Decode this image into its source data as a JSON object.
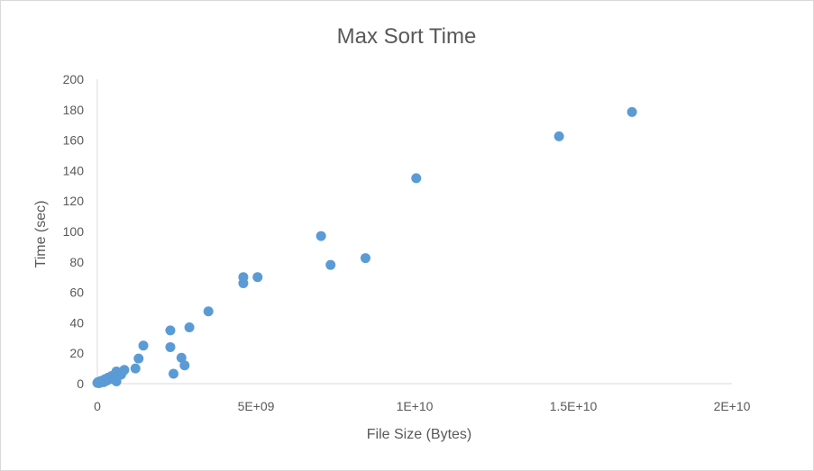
{
  "chart_data": {
    "type": "scatter",
    "title": "Max Sort Time",
    "xlabel": "File Size (Bytes)",
    "ylabel": "Time (sec)",
    "xlim": [
      0,
      20000000000
    ],
    "ylim": [
      0,
      200
    ],
    "x_ticks": [
      0,
      5000000000,
      10000000000,
      15000000000,
      20000000000
    ],
    "x_tick_labels": [
      "0",
      "5E+09",
      "1E+10",
      "1.5E+10",
      "2E+10"
    ],
    "y_ticks": [
      0,
      20,
      40,
      60,
      80,
      100,
      120,
      140,
      160,
      180,
      200
    ],
    "grid": false,
    "legend": "none",
    "marker_color": "#5b9bd5",
    "points": [
      {
        "x": 0,
        "y": 0.5
      },
      {
        "x": 20000000,
        "y": 1
      },
      {
        "x": 50000000,
        "y": 0.3
      },
      {
        "x": 80000000,
        "y": 1.5
      },
      {
        "x": 100000000,
        "y": 0.8
      },
      {
        "x": 150000000,
        "y": 2
      },
      {
        "x": 200000000,
        "y": 1
      },
      {
        "x": 250000000,
        "y": 3
      },
      {
        "x": 300000000,
        "y": 2
      },
      {
        "x": 350000000,
        "y": 4
      },
      {
        "x": 400000000,
        "y": 3
      },
      {
        "x": 450000000,
        "y": 5
      },
      {
        "x": 500000000,
        "y": 4
      },
      {
        "x": 550000000,
        "y": 6
      },
      {
        "x": 600000000,
        "y": 8
      },
      {
        "x": 600000000,
        "y": 1.5
      },
      {
        "x": 650000000,
        "y": 5
      },
      {
        "x": 700000000,
        "y": 7
      },
      {
        "x": 750000000,
        "y": 6
      },
      {
        "x": 800000000,
        "y": 8
      },
      {
        "x": 850000000,
        "y": 9
      },
      {
        "x": 1200000000,
        "y": 10
      },
      {
        "x": 1300000000,
        "y": 16.5
      },
      {
        "x": 1450000000,
        "y": 25
      },
      {
        "x": 2300000000,
        "y": 35
      },
      {
        "x": 2300000000,
        "y": 24
      },
      {
        "x": 2400000000,
        "y": 6.5
      },
      {
        "x": 2650000000,
        "y": 17
      },
      {
        "x": 2750000000,
        "y": 12
      },
      {
        "x": 2900000000,
        "y": 37
      },
      {
        "x": 3500000000,
        "y": 47.5
      },
      {
        "x": 4600000000,
        "y": 70
      },
      {
        "x": 4600000000,
        "y": 66
      },
      {
        "x": 5050000000,
        "y": 70
      },
      {
        "x": 7050000000,
        "y": 97
      },
      {
        "x": 7350000000,
        "y": 78
      },
      {
        "x": 8450000000,
        "y": 82.5
      },
      {
        "x": 10050000000,
        "y": 135
      },
      {
        "x": 14550000000,
        "y": 162.5
      },
      {
        "x": 16850000000,
        "y": 178.5
      }
    ]
  }
}
